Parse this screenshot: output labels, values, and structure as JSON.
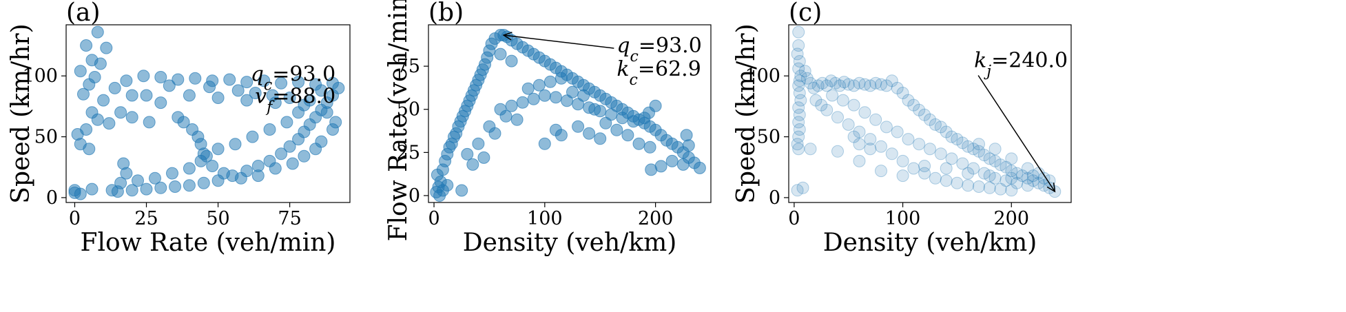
{
  "figure": {
    "colors": {
      "marker": "#1f77b4",
      "axes": "#000000"
    }
  },
  "chart_data": [
    {
      "panel": "a",
      "type": "scatter",
      "panel_label": "(a)",
      "xlabel": "Flow Rate (veh/min)",
      "ylabel": "Speed (km/hr)",
      "xlim": [
        -3,
        96
      ],
      "ylim": [
        -4,
        142
      ],
      "xticks": [
        0,
        25,
        50,
        75
      ],
      "yticks": [
        0,
        50,
        100
      ],
      "grid": false,
      "marker_alpha": 0.5,
      "annotation_lines": [
        "q_c=93.0",
        "v_f=88.0"
      ],
      "annotation_anchor": {
        "x": 91,
        "y": 96
      },
      "points": [
        [
          8,
          136
        ],
        [
          4,
          125
        ],
        [
          11,
          123
        ],
        [
          6,
          113
        ],
        [
          9,
          110
        ],
        [
          2,
          104
        ],
        [
          7,
          99
        ],
        [
          5,
          93
        ],
        [
          3,
          85
        ],
        [
          10,
          80
        ],
        [
          6,
          70
        ],
        [
          8,
          64
        ],
        [
          12,
          61
        ],
        [
          4,
          56
        ],
        [
          1,
          52
        ],
        [
          2,
          44
        ],
        [
          5,
          40
        ],
        [
          16,
          70
        ],
        [
          20,
          66
        ],
        [
          26,
          62
        ],
        [
          14,
          90
        ],
        [
          18,
          96
        ],
        [
          24,
          100
        ],
        [
          30,
          99
        ],
        [
          36,
          97
        ],
        [
          42,
          98
        ],
        [
          48,
          96
        ],
        [
          54,
          97
        ],
        [
          60,
          95
        ],
        [
          66,
          96
        ],
        [
          72,
          94
        ],
        [
          78,
          95
        ],
        [
          84,
          93
        ],
        [
          90,
          94
        ],
        [
          92,
          90
        ],
        [
          90,
          84
        ],
        [
          88,
          78
        ],
        [
          86,
          72
        ],
        [
          84,
          66
        ],
        [
          82,
          60
        ],
        [
          80,
          54
        ],
        [
          78,
          48
        ],
        [
          75,
          42
        ],
        [
          72,
          36
        ],
        [
          68,
          30
        ],
        [
          64,
          26
        ],
        [
          60,
          22
        ],
        [
          55,
          18
        ],
        [
          50,
          14
        ],
        [
          45,
          12
        ],
        [
          40,
          10
        ],
        [
          35,
          9
        ],
        [
          30,
          8
        ],
        [
          25,
          7
        ],
        [
          20,
          6
        ],
        [
          15,
          5
        ],
        [
          13,
          6
        ],
        [
          16,
          12
        ],
        [
          18,
          20
        ],
        [
          17,
          28
        ],
        [
          22,
          14
        ],
        [
          28,
          16
        ],
        [
          34,
          20
        ],
        [
          40,
          24
        ],
        [
          44,
          30
        ],
        [
          45,
          36
        ],
        [
          44,
          44
        ],
        [
          43,
          50
        ],
        [
          41,
          56
        ],
        [
          38,
          62
        ],
        [
          36,
          66
        ],
        [
          30,
          78
        ],
        [
          25,
          84
        ],
        [
          20,
          84
        ],
        [
          40,
          84
        ],
        [
          50,
          82
        ],
        [
          60,
          80
        ],
        [
          70,
          78
        ],
        [
          80,
          76
        ],
        [
          88,
          70
        ],
        [
          91,
          62
        ],
        [
          90,
          56
        ],
        [
          86,
          46
        ],
        [
          84,
          40
        ],
        [
          80,
          34
        ],
        [
          76,
          28
        ],
        [
          70,
          24
        ],
        [
          64,
          18
        ],
        [
          58,
          16
        ],
        [
          52,
          20
        ],
        [
          48,
          26
        ],
        [
          46,
          34
        ],
        [
          50,
          40
        ],
        [
          56,
          44
        ],
        [
          62,
          50
        ],
        [
          68,
          56
        ],
        [
          74,
          62
        ],
        [
          78,
          70
        ],
        [
          82,
          80
        ],
        [
          86,
          88
        ],
        [
          0,
          6
        ],
        [
          0,
          4
        ],
        [
          2,
          3
        ],
        [
          6,
          7
        ],
        [
          33,
          92
        ],
        [
          47,
          91
        ],
        [
          57,
          88
        ],
        [
          63,
          86
        ],
        [
          69,
          84
        ],
        [
          75,
          82
        ]
      ]
    },
    {
      "panel": "b",
      "type": "scatter",
      "panel_label": "(b)",
      "xlabel": "Density (veh/km)",
      "ylabel": "Flow Rate (veh/min)",
      "xlim": [
        -5,
        250
      ],
      "ylim": [
        -4,
        99
      ],
      "xticks": [
        0,
        100,
        200
      ],
      "yticks": [
        0,
        25,
        50,
        75
      ],
      "grid": false,
      "marker_alpha": 0.5,
      "annotation_lines": [
        "q_c=93.0",
        "k_c=62.9"
      ],
      "annotation_arrow_target": {
        "x": 62.9,
        "y": 93.0
      },
      "annotation_text_anchor": {
        "x": 165,
        "y": 83
      },
      "points": [
        [
          2,
          2
        ],
        [
          4,
          5
        ],
        [
          6,
          8
        ],
        [
          3,
          12
        ],
        [
          8,
          15
        ],
        [
          10,
          20
        ],
        [
          12,
          24
        ],
        [
          14,
          28
        ],
        [
          16,
          30
        ],
        [
          18,
          34
        ],
        [
          20,
          36
        ],
        [
          22,
          40
        ],
        [
          24,
          43
        ],
        [
          26,
          46
        ],
        [
          28,
          49
        ],
        [
          30,
          52
        ],
        [
          32,
          55
        ],
        [
          34,
          58
        ],
        [
          36,
          61
        ],
        [
          38,
          64
        ],
        [
          40,
          67
        ],
        [
          42,
          70
        ],
        [
          44,
          73
        ],
        [
          46,
          76
        ],
        [
          48,
          80
        ],
        [
          50,
          84
        ],
        [
          52,
          88
        ],
        [
          55,
          91
        ],
        [
          60,
          93
        ],
        [
          63,
          93
        ],
        [
          66,
          92
        ],
        [
          70,
          90
        ],
        [
          75,
          88
        ],
        [
          80,
          86
        ],
        [
          85,
          84
        ],
        [
          90,
          82
        ],
        [
          95,
          80
        ],
        [
          100,
          78
        ],
        [
          105,
          76
        ],
        [
          110,
          74
        ],
        [
          115,
          72
        ],
        [
          120,
          70
        ],
        [
          125,
          68
        ],
        [
          130,
          66
        ],
        [
          135,
          64
        ],
        [
          140,
          62
        ],
        [
          145,
          60
        ],
        [
          150,
          58
        ],
        [
          155,
          56
        ],
        [
          160,
          54
        ],
        [
          165,
          52
        ],
        [
          170,
          50
        ],
        [
          175,
          48
        ],
        [
          180,
          46
        ],
        [
          185,
          44
        ],
        [
          190,
          42
        ],
        [
          195,
          40
        ],
        [
          200,
          38
        ],
        [
          205,
          35
        ],
        [
          210,
          32
        ],
        [
          215,
          30
        ],
        [
          220,
          28
        ],
        [
          225,
          25
        ],
        [
          230,
          22
        ],
        [
          235,
          19
        ],
        [
          240,
          16
        ],
        [
          200,
          52
        ],
        [
          194,
          48
        ],
        [
          190,
          45
        ],
        [
          196,
          15
        ],
        [
          205,
          17
        ],
        [
          215,
          20
        ],
        [
          225,
          18
        ],
        [
          230,
          29
        ],
        [
          228,
          35
        ],
        [
          60,
          50
        ],
        [
          70,
          52
        ],
        [
          80,
          54
        ],
        [
          90,
          56
        ],
        [
          100,
          58
        ],
        [
          110,
          57
        ],
        [
          120,
          55
        ],
        [
          130,
          53
        ],
        [
          140,
          51
        ],
        [
          150,
          49
        ],
        [
          160,
          47
        ],
        [
          170,
          45
        ],
        [
          180,
          43
        ],
        [
          100,
          30
        ],
        [
          110,
          38
        ],
        [
          115,
          35
        ],
        [
          130,
          40
        ],
        [
          140,
          36
        ],
        [
          150,
          33
        ],
        [
          35,
          18
        ],
        [
          45,
          22
        ],
        [
          55,
          36
        ],
        [
          65,
          46
        ],
        [
          75,
          44
        ],
        [
          5,
          0
        ],
        [
          8,
          3
        ],
        [
          12,
          6
        ],
        [
          25,
          3
        ],
        [
          30,
          24
        ],
        [
          40,
          30
        ],
        [
          50,
          40
        ],
        [
          85,
          62
        ],
        [
          95,
          64
        ],
        [
          105,
          66
        ],
        [
          115,
          68
        ],
        [
          125,
          60
        ],
        [
          135,
          58
        ],
        [
          145,
          50
        ],
        [
          155,
          42
        ],
        [
          165,
          38
        ],
        [
          175,
          35
        ],
        [
          185,
          30
        ],
        [
          195,
          28
        ],
        [
          60,
          82
        ],
        [
          70,
          78
        ]
      ]
    },
    {
      "panel": "c",
      "type": "scatter",
      "panel_label": "(c)",
      "xlabel": "Density (veh/km)",
      "ylabel": "Speed (km/hr)",
      "xlim": [
        -5,
        255
      ],
      "ylim": [
        -4,
        142
      ],
      "xticks": [
        0,
        100,
        200
      ],
      "yticks": [
        0,
        50,
        100
      ],
      "grid": false,
      "marker_alpha": 0.18,
      "annotation_lines": [
        "k_j=240.0"
      ],
      "annotation_arrow_target": {
        "x": 240.0,
        "y": 5
      },
      "annotation_text_anchor": {
        "x": 172,
        "y": 97
      },
      "points": [
        [
          4,
          136
        ],
        [
          4,
          125
        ],
        [
          3,
          118
        ],
        [
          5,
          112
        ],
        [
          4,
          106
        ],
        [
          6,
          100
        ],
        [
          5,
          96
        ],
        [
          4,
          92
        ],
        [
          5,
          86
        ],
        [
          6,
          80
        ],
        [
          4,
          74
        ],
        [
          5,
          68
        ],
        [
          4,
          62
        ],
        [
          5,
          56
        ],
        [
          4,
          50
        ],
        [
          3,
          44
        ],
        [
          4,
          40
        ],
        [
          3,
          6
        ],
        [
          8,
          8
        ],
        [
          10,
          104
        ],
        [
          12,
          98
        ],
        [
          15,
          94
        ],
        [
          18,
          90
        ],
        [
          22,
          92
        ],
        [
          26,
          94
        ],
        [
          30,
          92
        ],
        [
          34,
          96
        ],
        [
          38,
          94
        ],
        [
          42,
          92
        ],
        [
          46,
          95
        ],
        [
          50,
          93
        ],
        [
          55,
          92
        ],
        [
          60,
          94
        ],
        [
          65,
          93
        ],
        [
          70,
          92
        ],
        [
          75,
          94
        ],
        [
          80,
          93
        ],
        [
          85,
          92
        ],
        [
          90,
          96
        ],
        [
          95,
          90
        ],
        [
          100,
          86
        ],
        [
          105,
          80
        ],
        [
          110,
          76
        ],
        [
          115,
          72
        ],
        [
          120,
          68
        ],
        [
          125,
          64
        ],
        [
          130,
          60
        ],
        [
          135,
          58
        ],
        [
          140,
          54
        ],
        [
          145,
          50
        ],
        [
          150,
          48
        ],
        [
          155,
          45
        ],
        [
          160,
          42
        ],
        [
          165,
          40
        ],
        [
          170,
          38
        ],
        [
          175,
          35
        ],
        [
          180,
          32
        ],
        [
          185,
          30
        ],
        [
          190,
          27
        ],
        [
          195,
          25
        ],
        [
          200,
          22
        ],
        [
          205,
          20
        ],
        [
          210,
          18
        ],
        [
          215,
          16
        ],
        [
          220,
          14
        ],
        [
          225,
          12
        ],
        [
          230,
          10
        ],
        [
          235,
          8
        ],
        [
          240,
          5
        ],
        [
          30,
          72
        ],
        [
          40,
          66
        ],
        [
          50,
          60
        ],
        [
          60,
          54
        ],
        [
          70,
          48
        ],
        [
          80,
          42
        ],
        [
          90,
          36
        ],
        [
          100,
          30
        ],
        [
          110,
          24
        ],
        [
          120,
          20
        ],
        [
          130,
          16
        ],
        [
          140,
          14
        ],
        [
          150,
          12
        ],
        [
          160,
          10
        ],
        [
          170,
          9
        ],
        [
          180,
          8
        ],
        [
          190,
          7
        ],
        [
          200,
          6
        ],
        [
          20,
          80
        ],
        [
          25,
          76
        ],
        [
          35,
          84
        ],
        [
          45,
          80
        ],
        [
          55,
          76
        ],
        [
          65,
          70
        ],
        [
          75,
          64
        ],
        [
          85,
          58
        ],
        [
          95,
          54
        ],
        [
          105,
          48
        ],
        [
          115,
          44
        ],
        [
          125,
          40
        ],
        [
          135,
          36
        ],
        [
          145,
          32
        ],
        [
          155,
          28
        ],
        [
          165,
          24
        ],
        [
          175,
          20
        ],
        [
          185,
          16
        ],
        [
          195,
          14
        ],
        [
          205,
          12
        ],
        [
          215,
          10
        ],
        [
          40,
          38
        ],
        [
          60,
          30
        ],
        [
          80,
          22
        ],
        [
          100,
          18
        ],
        [
          120,
          26
        ],
        [
          140,
          24
        ],
        [
          160,
          20
        ],
        [
          180,
          18
        ],
        [
          200,
          16
        ],
        [
          220,
          18
        ],
        [
          230,
          16
        ],
        [
          170,
          44
        ],
        [
          185,
          40
        ],
        [
          200,
          32
        ],
        [
          215,
          24
        ],
        [
          225,
          20
        ],
        [
          235,
          14
        ],
        [
          60,
          44
        ],
        [
          70,
          40
        ],
        [
          55,
          50
        ],
        [
          15,
          40
        ]
      ]
    }
  ]
}
